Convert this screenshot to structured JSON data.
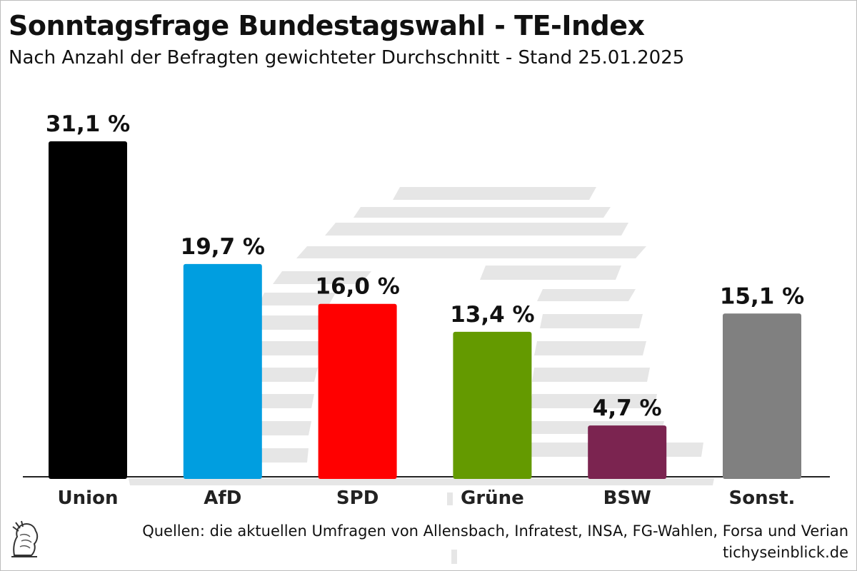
{
  "chart_data": {
    "type": "bar",
    "title": "Sonntagsfrage Bundestagswahl - TE-Index",
    "subtitle": "Nach Anzahl der Befragten gewichteter Durchschnitt - Stand 25.01.2025",
    "categories": [
      "Union",
      "AfD",
      "SPD",
      "Grüne",
      "BSW",
      "Sonst."
    ],
    "values": [
      31.1,
      19.7,
      16.0,
      13.4,
      4.7,
      15.1
    ],
    "value_labels": [
      "31,1 %",
      "19,7 %",
      "16,0 %",
      "13,4 %",
      "4,7 %",
      "15,1 %"
    ],
    "colors": [
      "#000000",
      "#009ee0",
      "#ff0000",
      "#649a00",
      "#7b2450",
      "#808080"
    ],
    "ylim": [
      0,
      31.1
    ],
    "grid": false,
    "legend": "none"
  },
  "footer": {
    "sources": "Quellen: die aktuellen Umfragen von Allensbach, Infratest, INSA, FG-Wahlen, Forsa und Verian",
    "site": "tichyseinblick.de",
    "logo_icon": "hermes-head-icon"
  }
}
